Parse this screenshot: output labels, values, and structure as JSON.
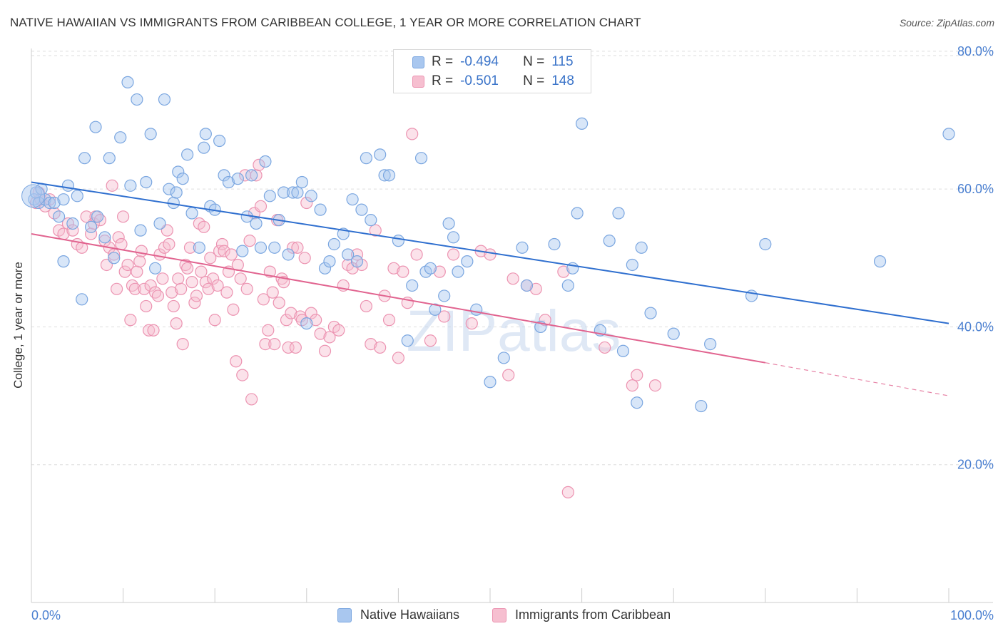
{
  "title": "NATIVE HAWAIIAN VS IMMIGRANTS FROM CARIBBEAN COLLEGE, 1 YEAR OR MORE CORRELATION CHART",
  "source": "Source: ZipAtlas.com",
  "watermark": "ZIPatlas",
  "legend": {
    "r_label": "R =",
    "n_label": "N =",
    "series1": {
      "r": "-0.494",
      "n": "115"
    },
    "series2": {
      "r": "-0.501",
      "n": "148"
    }
  },
  "colors": {
    "blue_fill": "#a9c7ef",
    "blue_stroke": "#7aa6e0",
    "blue_line": "#2f6fcf",
    "pink_fill": "#f6bfd0",
    "pink_stroke": "#ec93b1",
    "pink_line": "#e1638f",
    "tick_text": "#4a7fd0",
    "grid": "#dddddd"
  },
  "chart_data": {
    "type": "scatter",
    "title": "NATIVE HAWAIIAN VS IMMIGRANTS FROM CARIBBEAN COLLEGE, 1 YEAR OR MORE CORRELATION CHART",
    "xlabel": "",
    "ylabel": "College, 1 year or more",
    "xlim": [
      0,
      100
    ],
    "ylim": [
      0,
      86
    ],
    "x_tick_labels": [
      "0.0%",
      "100.0%"
    ],
    "y_ticks": [
      20,
      40,
      60,
      80
    ],
    "y_tick_labels": [
      "20.0%",
      "40.0%",
      "60.0%",
      "80.0%"
    ],
    "grid": true,
    "legend_position": "top-center",
    "series": [
      {
        "name": "Native Hawaiians",
        "r": -0.494,
        "n": 115,
        "trend": {
          "x": [
            0,
            100
          ],
          "y": [
            61.0,
            40.5
          ]
        },
        "points": [
          [
            0.3,
            58.5
          ],
          [
            0.5,
            59.5
          ],
          [
            0.8,
            58.0
          ],
          [
            1.1,
            60.0
          ],
          [
            1.5,
            58.5
          ],
          [
            2.0,
            58.0
          ],
          [
            2.5,
            58.0
          ],
          [
            3.0,
            56.0
          ],
          [
            3.5,
            58.5
          ],
          [
            3.5,
            49.5
          ],
          [
            4.0,
            60.5
          ],
          [
            4.5,
            55.0
          ],
          [
            5.0,
            59.0
          ],
          [
            5.5,
            44.0
          ],
          [
            5.8,
            64.5
          ],
          [
            6.5,
            54.5
          ],
          [
            7.0,
            69.0
          ],
          [
            7.2,
            56.0
          ],
          [
            8.0,
            53.0
          ],
          [
            8.5,
            64.5
          ],
          [
            9.0,
            50.0
          ],
          [
            9.7,
            67.5
          ],
          [
            10.5,
            75.5
          ],
          [
            10.8,
            60.5
          ],
          [
            11.5,
            73.0
          ],
          [
            11.9,
            54.0
          ],
          [
            12.5,
            61.0
          ],
          [
            13.0,
            68.0
          ],
          [
            13.5,
            48.5
          ],
          [
            14.0,
            55.0
          ],
          [
            14.5,
            73.0
          ],
          [
            15.0,
            60.0
          ],
          [
            15.5,
            58.0
          ],
          [
            15.8,
            59.5
          ],
          [
            16.0,
            62.5
          ],
          [
            16.5,
            61.5
          ],
          [
            17.0,
            65.0
          ],
          [
            17.5,
            56.5
          ],
          [
            18.3,
            51.5
          ],
          [
            18.8,
            66.0
          ],
          [
            19.0,
            68.0
          ],
          [
            19.5,
            57.5
          ],
          [
            20.0,
            57.0
          ],
          [
            20.5,
            67.0
          ],
          [
            21.0,
            62.0
          ],
          [
            21.5,
            61.0
          ],
          [
            22.5,
            61.5
          ],
          [
            23.0,
            51.0
          ],
          [
            23.5,
            56.0
          ],
          [
            24.0,
            62.0
          ],
          [
            24.5,
            55.0
          ],
          [
            25.0,
            51.5
          ],
          [
            25.5,
            64.0
          ],
          [
            26.0,
            59.0
          ],
          [
            26.5,
            51.5
          ],
          [
            27.0,
            55.5
          ],
          [
            27.5,
            59.5
          ],
          [
            28.0,
            50.5
          ],
          [
            28.5,
            59.5
          ],
          [
            29.0,
            59.5
          ],
          [
            29.5,
            61.0
          ],
          [
            30.0,
            40.5
          ],
          [
            30.5,
            59.0
          ],
          [
            31.5,
            57.0
          ],
          [
            32.0,
            48.5
          ],
          [
            32.5,
            49.5
          ],
          [
            33.0,
            52.0
          ],
          [
            34.0,
            53.5
          ],
          [
            34.5,
            50.5
          ],
          [
            35.0,
            58.5
          ],
          [
            35.5,
            49.5
          ],
          [
            36.0,
            57.0
          ],
          [
            36.5,
            64.5
          ],
          [
            37.0,
            55.5
          ],
          [
            38.0,
            65.0
          ],
          [
            38.5,
            62.0
          ],
          [
            39.0,
            62.0
          ],
          [
            40.0,
            52.5
          ],
          [
            41.0,
            38.0
          ],
          [
            41.5,
            46.0
          ],
          [
            42.5,
            64.5
          ],
          [
            43.0,
            48.0
          ],
          [
            43.5,
            48.5
          ],
          [
            44.0,
            42.5
          ],
          [
            45.0,
            44.5
          ],
          [
            45.5,
            55.0
          ],
          [
            46.0,
            53.0
          ],
          [
            46.5,
            48.0
          ],
          [
            47.5,
            49.5
          ],
          [
            48.5,
            42.5
          ],
          [
            50.0,
            32.0
          ],
          [
            51.5,
            35.5
          ],
          [
            53.5,
            51.5
          ],
          [
            54.0,
            46.0
          ],
          [
            55.5,
            40.0
          ],
          [
            57.0,
            52.0
          ],
          [
            58.5,
            46.0
          ],
          [
            59.0,
            48.5
          ],
          [
            59.5,
            56.5
          ],
          [
            60.0,
            69.5
          ],
          [
            62.0,
            39.5
          ],
          [
            63.0,
            52.5
          ],
          [
            64.0,
            56.5
          ],
          [
            64.5,
            36.5
          ],
          [
            65.5,
            49.0
          ],
          [
            66.0,
            29.0
          ],
          [
            66.5,
            51.5
          ],
          [
            67.5,
            42.0
          ],
          [
            70.0,
            39.0
          ],
          [
            73.0,
            28.5
          ],
          [
            74.0,
            37.5
          ],
          [
            78.5,
            44.5
          ],
          [
            80.0,
            52.0
          ],
          [
            92.5,
            49.5
          ],
          [
            100.0,
            68.0
          ]
        ]
      },
      {
        "name": "Immigrants from Caribbean",
        "r": -0.501,
        "n": 148,
        "trend": {
          "x": [
            0,
            80
          ],
          "y": [
            53.5,
            34.8
          ]
        },
        "trend_dashed": {
          "x": [
            80,
            100
          ],
          "y": [
            34.8,
            30.0
          ]
        },
        "points": [
          [
            0.5,
            58.0
          ],
          [
            0.8,
            59.5
          ],
          [
            1.0,
            58.5
          ],
          [
            1.5,
            57.5
          ],
          [
            2.0,
            58.5
          ],
          [
            2.5,
            56.5
          ],
          [
            3.0,
            54.0
          ],
          [
            3.5,
            53.5
          ],
          [
            4.0,
            55.0
          ],
          [
            4.5,
            54.0
          ],
          [
            5.0,
            52.0
          ],
          [
            5.5,
            51.5
          ],
          [
            6.0,
            56.0
          ],
          [
            6.5,
            53.5
          ],
          [
            6.8,
            55.0
          ],
          [
            7.0,
            56.0
          ],
          [
            7.5,
            55.5
          ],
          [
            8.0,
            52.5
          ],
          [
            8.2,
            49.0
          ],
          [
            8.5,
            51.5
          ],
          [
            8.8,
            60.5
          ],
          [
            9.0,
            50.5
          ],
          [
            9.3,
            45.5
          ],
          [
            9.5,
            53.0
          ],
          [
            9.8,
            52.0
          ],
          [
            10.0,
            56.0
          ],
          [
            10.2,
            48.0
          ],
          [
            10.5,
            49.0
          ],
          [
            10.8,
            41.0
          ],
          [
            11.0,
            46.0
          ],
          [
            11.3,
            45.5
          ],
          [
            11.5,
            48.0
          ],
          [
            11.8,
            49.5
          ],
          [
            12.0,
            51.0
          ],
          [
            12.3,
            45.5
          ],
          [
            12.5,
            43.0
          ],
          [
            12.8,
            39.5
          ],
          [
            13.0,
            46.0
          ],
          [
            13.3,
            39.5
          ],
          [
            13.5,
            45.0
          ],
          [
            13.8,
            44.5
          ],
          [
            14.0,
            50.5
          ],
          [
            14.3,
            47.0
          ],
          [
            14.5,
            51.5
          ],
          [
            14.8,
            54.0
          ],
          [
            15.0,
            52.0
          ],
          [
            15.3,
            45.0
          ],
          [
            15.5,
            43.0
          ],
          [
            15.8,
            40.5
          ],
          [
            16.0,
            47.0
          ],
          [
            16.3,
            45.5
          ],
          [
            16.5,
            37.5
          ],
          [
            16.8,
            49.0
          ],
          [
            17.0,
            48.5
          ],
          [
            17.3,
            51.5
          ],
          [
            17.5,
            46.5
          ],
          [
            17.8,
            43.5
          ],
          [
            18.0,
            44.5
          ],
          [
            18.3,
            55.0
          ],
          [
            18.5,
            48.0
          ],
          [
            18.8,
            54.5
          ],
          [
            19.0,
            46.5
          ],
          [
            19.3,
            45.5
          ],
          [
            19.5,
            50.0
          ],
          [
            19.8,
            47.0
          ],
          [
            20.0,
            41.0
          ],
          [
            20.3,
            46.0
          ],
          [
            20.5,
            51.0
          ],
          [
            20.8,
            52.0
          ],
          [
            21.0,
            51.0
          ],
          [
            21.3,
            45.0
          ],
          [
            21.5,
            48.0
          ],
          [
            21.8,
            50.5
          ],
          [
            22.0,
            42.5
          ],
          [
            22.3,
            35.0
          ],
          [
            22.5,
            49.0
          ],
          [
            22.8,
            47.0
          ],
          [
            23.0,
            33.0
          ],
          [
            23.3,
            62.0
          ],
          [
            23.5,
            45.5
          ],
          [
            23.8,
            52.5
          ],
          [
            24.0,
            29.5
          ],
          [
            24.3,
            56.5
          ],
          [
            24.5,
            62.0
          ],
          [
            24.8,
            63.5
          ],
          [
            25.0,
            57.5
          ],
          [
            25.3,
            44.0
          ],
          [
            25.5,
            37.5
          ],
          [
            25.8,
            39.5
          ],
          [
            26.0,
            48.0
          ],
          [
            26.3,
            45.0
          ],
          [
            26.5,
            37.5
          ],
          [
            26.8,
            55.5
          ],
          [
            27.0,
            43.5
          ],
          [
            27.3,
            47.0
          ],
          [
            27.5,
            46.5
          ],
          [
            27.8,
            41.0
          ],
          [
            28.0,
            37.0
          ],
          [
            28.3,
            42.0
          ],
          [
            28.5,
            51.5
          ],
          [
            28.8,
            37.0
          ],
          [
            29.0,
            51.5
          ],
          [
            29.3,
            41.5
          ],
          [
            29.5,
            41.0
          ],
          [
            29.8,
            50.0
          ],
          [
            30.0,
            58.0
          ],
          [
            30.5,
            42.0
          ],
          [
            31.0,
            41.0
          ],
          [
            31.5,
            39.0
          ],
          [
            32.0,
            36.5
          ],
          [
            32.5,
            38.5
          ],
          [
            33.0,
            40.0
          ],
          [
            33.5,
            39.5
          ],
          [
            34.0,
            46.0
          ],
          [
            34.5,
            49.0
          ],
          [
            35.0,
            48.5
          ],
          [
            35.5,
            50.5
          ],
          [
            36.0,
            49.0
          ],
          [
            36.5,
            43.0
          ],
          [
            37.0,
            37.5
          ],
          [
            37.5,
            54.0
          ],
          [
            38.0,
            37.0
          ],
          [
            38.5,
            44.5
          ],
          [
            39.0,
            41.0
          ],
          [
            39.5,
            48.5
          ],
          [
            40.0,
            35.5
          ],
          [
            40.5,
            48.0
          ],
          [
            41.0,
            43.5
          ],
          [
            41.5,
            68.0
          ],
          [
            42.0,
            50.5
          ],
          [
            43.5,
            38.0
          ],
          [
            44.5,
            48.0
          ],
          [
            45.0,
            41.5
          ],
          [
            46.0,
            50.5
          ],
          [
            48.0,
            40.5
          ],
          [
            49.0,
            51.0
          ],
          [
            50.0,
            50.5
          ],
          [
            52.0,
            33.0
          ],
          [
            52.5,
            47.0
          ],
          [
            54.0,
            46.0
          ],
          [
            55.0,
            45.5
          ],
          [
            56.0,
            41.0
          ],
          [
            58.0,
            48.0
          ],
          [
            58.5,
            16.0
          ],
          [
            62.5,
            37.0
          ],
          [
            65.5,
            31.5
          ],
          [
            66.0,
            33.0
          ],
          [
            68.0,
            31.5
          ]
        ]
      }
    ]
  },
  "bottom_legend": {
    "item1": "Native Hawaiians",
    "item2": "Immigrants from Caribbean"
  }
}
